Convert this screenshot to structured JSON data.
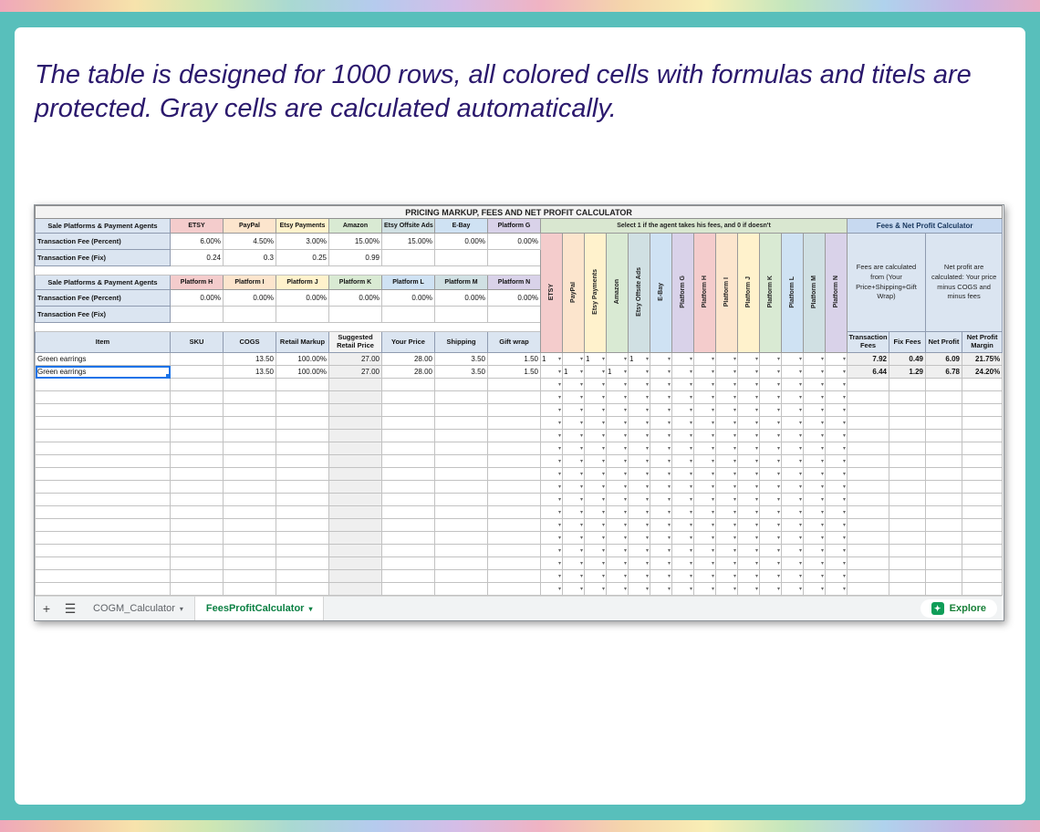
{
  "caption": "The table is designed for 1000 rows, all colored cells with formulas and titels are protected. Gray cells are calculated automatically.",
  "frame": {
    "teal": "#58bfbb"
  },
  "sheet": {
    "title": "PRICING MARKUP, FEES AND NET PROFIT CALCULATOR",
    "agents_header": "Sale Platforms & Payment Agents",
    "pct_label": "Transaction Fee (Percent)",
    "fix_label": "Transaction Fee (Fix)",
    "select_banner": "Select 1 if the agent takes his fees, and 0 if doesn't",
    "fees_header": "Fees & Net Profit Calculator",
    "fees_note": "Fees are calculated from (Your Price+Shipping+Gift Wrap)",
    "profit_note": "Net profit are calculated: Your price minus COGS and minus fees",
    "platforms": [
      {
        "name": "ETSY",
        "color": "#f4cccc",
        "pct": "6.00%",
        "fix": "0.24"
      },
      {
        "name": "PayPal",
        "color": "#fce5cd",
        "pct": "4.50%",
        "fix": "0.3"
      },
      {
        "name": "Etsy Payments",
        "color": "#fff2cc",
        "pct": "3.00%",
        "fix": "0.25"
      },
      {
        "name": "Amazon",
        "color": "#d9ead3",
        "pct": "15.00%",
        "fix": "0.99"
      },
      {
        "name": "Etsy Offsite Ads",
        "color": "#d0e0e3",
        "pct": "15.00%",
        "fix": ""
      },
      {
        "name": "E-Bay",
        "color": "#cfe2f3",
        "pct": "0.00%",
        "fix": ""
      },
      {
        "name": "Platform G",
        "color": "#d9d2e9",
        "pct": "0.00%",
        "fix": ""
      },
      {
        "name": "Platform H",
        "color": "#f4cccc",
        "pct": "0.00%",
        "fix": ""
      },
      {
        "name": "Platform I",
        "color": "#fce5cd",
        "pct": "0.00%",
        "fix": ""
      },
      {
        "name": "Platform J",
        "color": "#fff2cc",
        "pct": "0.00%",
        "fix": ""
      },
      {
        "name": "Platform K",
        "color": "#d9ead3",
        "pct": "0.00%",
        "fix": ""
      },
      {
        "name": "Platform L",
        "color": "#cfe2f3",
        "pct": "0.00%",
        "fix": ""
      },
      {
        "name": "Platform M",
        "color": "#d0e0e3",
        "pct": "0.00%",
        "fix": ""
      },
      {
        "name": "Platform N",
        "color": "#d9d2e9",
        "pct": "0.00%",
        "fix": ""
      }
    ],
    "main_headers": [
      "Item",
      "SKU",
      "COGS",
      "Retail Markup",
      "Suggested Retail Price",
      "Your Price",
      "Shipping",
      "Gift wrap"
    ],
    "calc_headers": [
      "Transaction Fees",
      "Fix Fees",
      "Net Profit",
      "Net Profit Margin"
    ],
    "rows": [
      {
        "item": "Green earrings",
        "sku": "",
        "cogs": "13.50",
        "markup": "100.00%",
        "suggested": "27.00",
        "price": "28.00",
        "shipping": "3.50",
        "gift": "1.50",
        "flags": [
          "1",
          "",
          "1",
          "",
          "1",
          "",
          "",
          "",
          "",
          "",
          "",
          "",
          "",
          ""
        ],
        "calc": [
          "7.92",
          "0.49",
          "6.09",
          "21.75%"
        ]
      },
      {
        "item": "Green earrings",
        "sku": "",
        "cogs": "13.50",
        "markup": "100.00%",
        "suggested": "27.00",
        "price": "28.00",
        "shipping": "3.50",
        "gift": "1.50",
        "flags": [
          "",
          "1",
          "",
          "1",
          "",
          "",
          "",
          "",
          "",
          "",
          "",
          "",
          "",
          ""
        ],
        "calc": [
          "6.44",
          "1.29",
          "6.78",
          "24.20%"
        ]
      }
    ],
    "empty_rows": 17,
    "tabs": {
      "add": "+",
      "all_sheets": "☰",
      "cogm": "COGM_Calculator",
      "active": "FeesProfitCalculator",
      "explore": "Explore",
      "accent_green": "#0b8043"
    }
  }
}
